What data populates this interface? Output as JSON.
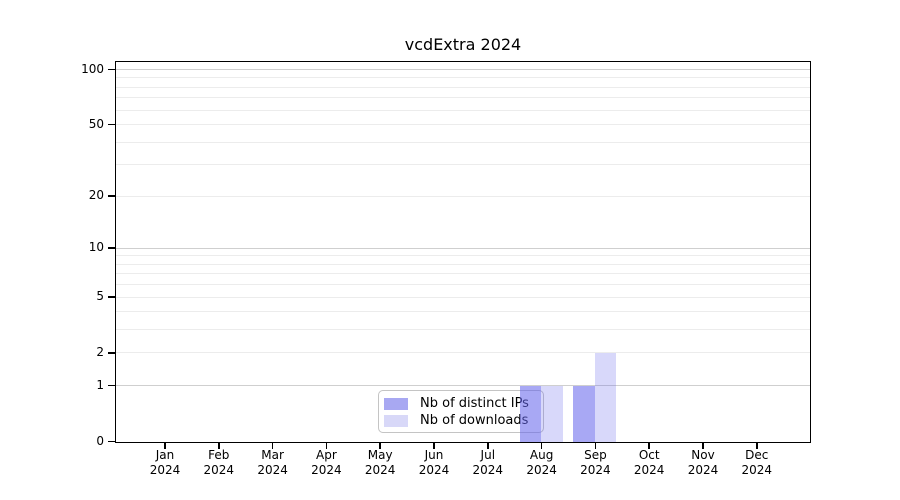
{
  "chart_data": {
    "type": "bar",
    "title": "vcdExtra 2024",
    "x_categories": [
      "Jan",
      "Feb",
      "Mar",
      "Apr",
      "May",
      "Jun",
      "Jul",
      "Aug",
      "Sep",
      "Oct",
      "Nov",
      "Dec"
    ],
    "x_year": "2024",
    "series": [
      {
        "name": "Nb of distinct IPs",
        "values": [
          0,
          0,
          0,
          0,
          0,
          0,
          0,
          1,
          1,
          0,
          0,
          0
        ],
        "bar_color": "rgba(100,100,235,0.56)",
        "legend_color": "#a8a8f2"
      },
      {
        "name": "Nb of downloads",
        "values": [
          0,
          0,
          0,
          0,
          0,
          0,
          0,
          1,
          2,
          0,
          0,
          0
        ],
        "bar_color": "rgba(100,100,235,0.25)",
        "legend_color": "#d8d8f8"
      }
    ],
    "y_scale": "log10(value+1)",
    "y_tick_values": [
      0,
      1,
      2,
      5,
      10,
      20,
      50,
      100
    ],
    "y_gridlines_major": [
      1,
      10,
      100
    ],
    "y_gridlines_minor": [
      2,
      3,
      4,
      5,
      6,
      7,
      8,
      9,
      20,
      30,
      40,
      50,
      60,
      70,
      80,
      90
    ],
    "ylim": [
      0,
      112
    ],
    "legend_position": "bottom-center",
    "grid_on": true,
    "colors": {
      "grid_major": "#cfcfcf",
      "grid_minor": "#ececec",
      "axis": "#000000",
      "background": "#ffffff"
    }
  }
}
